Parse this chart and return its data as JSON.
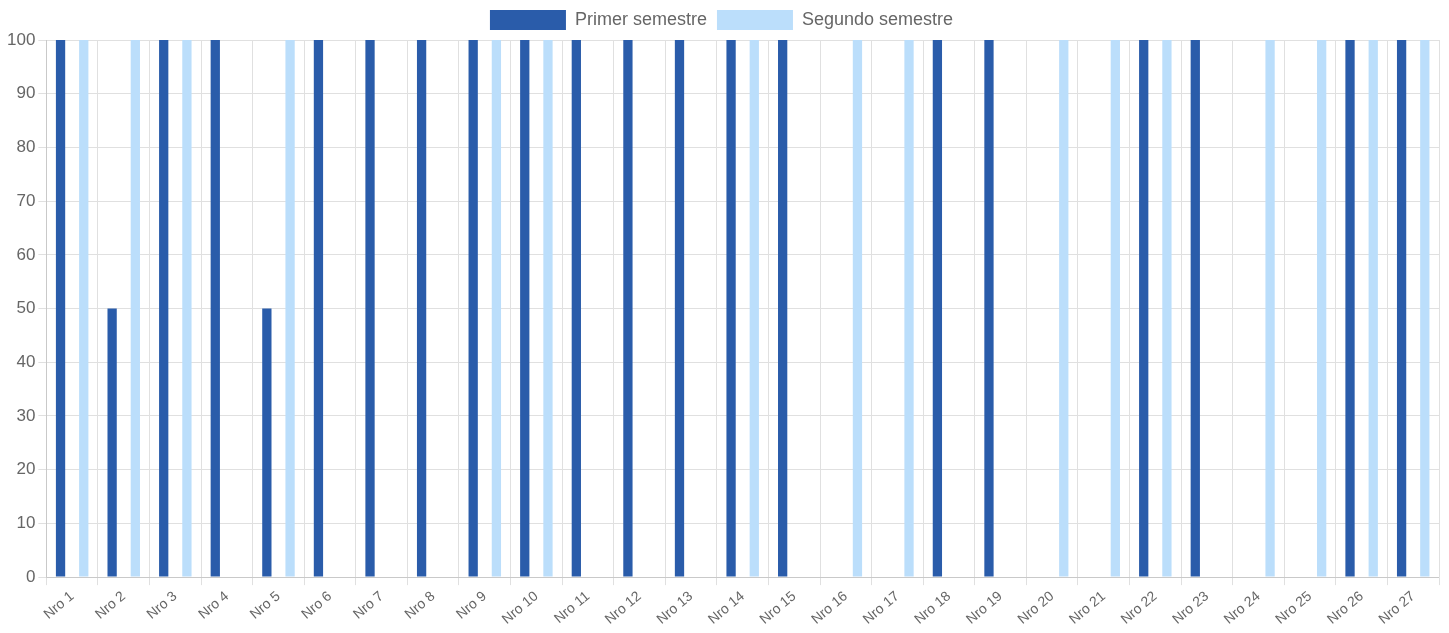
{
  "chart_data": {
    "type": "bar",
    "categories": [
      "Nro 1",
      "Nro 2",
      "Nro 3",
      "Nro 4",
      "Nro 5",
      "Nro 6",
      "Nro 7",
      "Nro 8",
      "Nro 9",
      "Nro 10",
      "Nro 11",
      "Nro 12",
      "Nro 13",
      "Nro 14",
      "Nro 15",
      "Nro 16",
      "Nro 17",
      "Nro 18",
      "Nro 19",
      "Nro 20",
      "Nro 21",
      "Nro 22",
      "Nro 23",
      "Nro 24",
      "Nro 25",
      "Nro 26",
      "Nro 27"
    ],
    "series": [
      {
        "name": "Primer semestre",
        "color": "#2a5caa",
        "values": [
          100,
          50,
          100,
          100,
          50,
          100,
          100,
          100,
          100,
          100,
          100,
          100,
          100,
          100,
          100,
          0,
          0,
          100,
          100,
          0,
          0,
          100,
          100,
          0,
          0,
          100,
          100
        ]
      },
      {
        "name": "Segundo semestre",
        "color": "#bbdefb",
        "values": [
          100,
          100,
          100,
          0,
          100,
          0,
          0,
          0,
          100,
          100,
          0,
          0,
          0,
          100,
          0,
          100,
          100,
          0,
          0,
          100,
          100,
          100,
          0,
          100,
          100,
          100,
          100
        ]
      }
    ],
    "ylim": [
      0,
      100
    ],
    "yticks": [
      0,
      10,
      20,
      30,
      40,
      50,
      60,
      70,
      80,
      90,
      100
    ],
    "grid": true,
    "legend": "top"
  }
}
